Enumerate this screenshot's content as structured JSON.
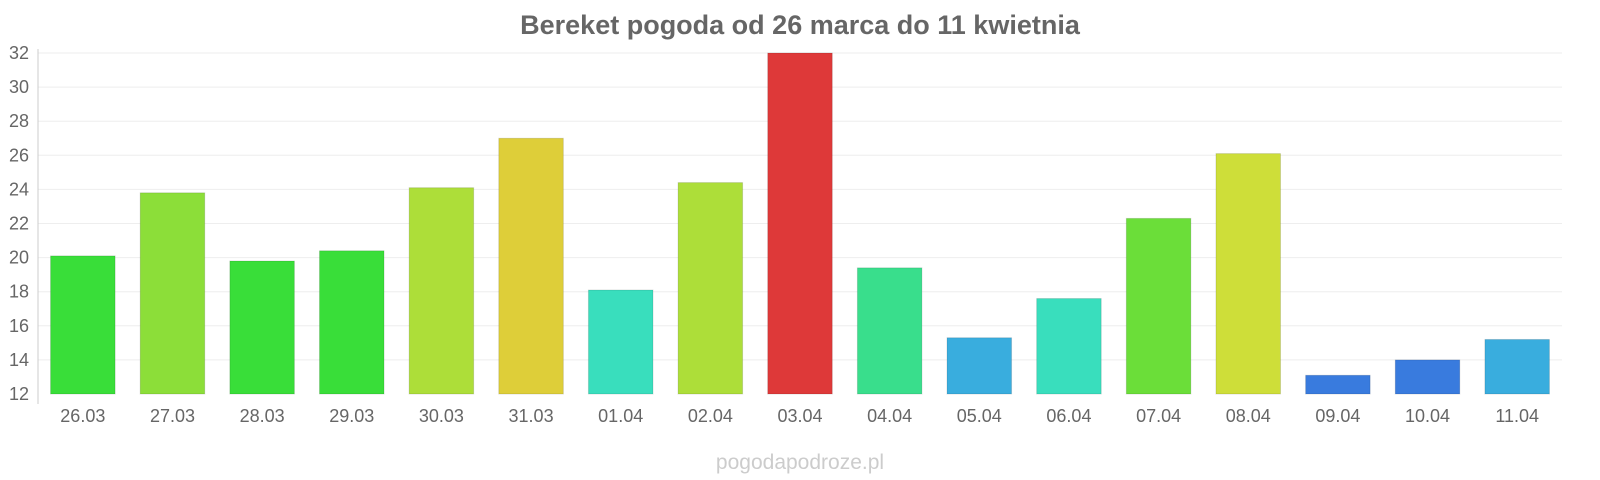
{
  "chart_data": {
    "type": "bar",
    "title": "Bereket pogoda od 26 marca do 11 kwietnia",
    "xlabel": "",
    "ylabel": "",
    "ylim": [
      12,
      32
    ],
    "yticks": [
      12,
      14,
      16,
      18,
      20,
      22,
      24,
      26,
      28,
      30,
      32
    ],
    "grid": true,
    "categories": [
      "26.03",
      "27.03",
      "28.03",
      "29.03",
      "30.03",
      "31.03",
      "01.04",
      "02.04",
      "03.04",
      "04.04",
      "05.04",
      "06.04",
      "07.04",
      "08.04",
      "09.04",
      "10.04",
      "11.04"
    ],
    "values": [
      20.1,
      23.8,
      19.8,
      20.4,
      24.1,
      27.0,
      18.1,
      24.4,
      32.0,
      19.4,
      15.3,
      17.6,
      22.3,
      26.1,
      13.1,
      14.0,
      15.2
    ],
    "colors": [
      "#33dd33",
      "#88dd33",
      "#33dd33",
      "#33dd33",
      "#aadd33",
      "#ddcc33",
      "#33ddbb",
      "#aadd33",
      "#dd3333",
      "#33dd88",
      "#33aadd",
      "#33ddbb",
      "#66dd33",
      "#ccdd33",
      "#3377dd",
      "#3377dd",
      "#33aadd"
    ]
  },
  "watermark": "pogodapodroze.pl"
}
